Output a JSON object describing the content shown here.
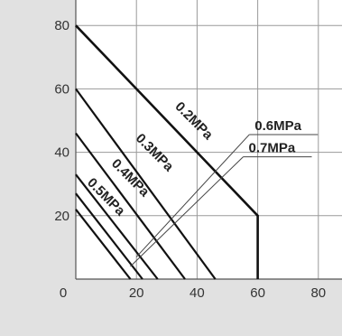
{
  "chart_data": {
    "type": "line",
    "title": "",
    "xlabel": "",
    "ylabel": "",
    "xlim": [
      0,
      88
    ],
    "ylim": [
      0,
      88
    ],
    "x_ticks": [
      0,
      20,
      40,
      60,
      80
    ],
    "y_ticks": [
      20,
      40,
      60,
      80
    ],
    "x_tick_labels": [
      "0",
      "20",
      "40",
      "60",
      "80"
    ],
    "y_tick_labels": [
      "20",
      "40",
      "60",
      "80"
    ],
    "grid": true,
    "legend": "none",
    "colors": {
      "panel": "#e1e1e1",
      "plot_bg": "#ffffff",
      "line": "#111111",
      "leader": "#444444"
    },
    "series": [
      {
        "name": "0.2MPa",
        "x": [
          0,
          60,
          60
        ],
        "y": [
          80,
          20,
          0
        ]
      },
      {
        "name": "0.3MPa",
        "x": [
          0,
          46
        ],
        "y": [
          60,
          0
        ]
      },
      {
        "name": "0.4MPa",
        "x": [
          0,
          36
        ],
        "y": [
          46,
          0
        ]
      },
      {
        "name": "0.5MPa",
        "x": [
          0,
          27
        ],
        "y": [
          33,
          0
        ]
      },
      {
        "name": "0.6MPa",
        "x": [
          0,
          22
        ],
        "y": [
          27,
          0
        ]
      },
      {
        "name": "0.7MPa",
        "x": [
          0,
          18
        ],
        "y": [
          22,
          0
        ]
      }
    ],
    "annotations": [
      {
        "text": "0.2MPa",
        "x": 38,
        "y": 49,
        "angle": 45,
        "kind": "inline"
      },
      {
        "text": "0.3MPa",
        "x": 25,
        "y": 39,
        "angle": 45,
        "kind": "inline"
      },
      {
        "text": "0.4MPa",
        "x": 17,
        "y": 31,
        "angle": 45,
        "kind": "inline"
      },
      {
        "text": "0.5MPa",
        "x": 9,
        "y": 25,
        "angle": 45,
        "kind": "inline"
      },
      {
        "text": "0.6MPa",
        "x": 59,
        "y": 47,
        "kind": "callout",
        "target": [
          20,
          7
        ]
      },
      {
        "text": "0.7MPa",
        "x": 57,
        "y": 40,
        "kind": "callout",
        "target": [
          18,
          4
        ]
      }
    ]
  }
}
